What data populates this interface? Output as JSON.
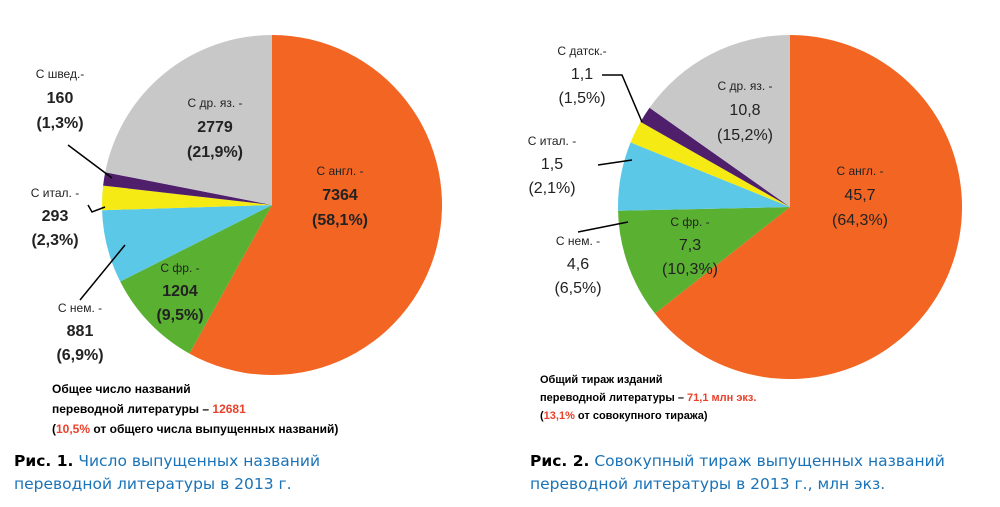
{
  "chart_data": [
    {
      "type": "pie",
      "categories": [
        "С англ. -",
        "С фр. -",
        "С нем. -",
        "С итал. -",
        "С швед.-",
        "С др. яз. -"
      ],
      "values": [
        7364,
        1204,
        881,
        293,
        160,
        2779
      ],
      "percent_labels": [
        "(58,1%)",
        "(9,5%)",
        "(6,9%)",
        "(2,3%)",
        "(1,3%)",
        "(21,9%)"
      ],
      "colors": [
        "#f26522",
        "#5ab031",
        "#5bc8e8",
        "#f5ea14",
        "#4f1f6b",
        "#c8c8c8"
      ],
      "note": [
        [
          {
            "text": "Общее число названий",
            "color": "#000000"
          }
        ],
        [
          {
            "text": "переводной литературы – ",
            "color": "#000000"
          },
          {
            "text": "12681",
            "color": "#e8412c"
          }
        ],
        [
          {
            "text": "(",
            "color": "#000000"
          },
          {
            "text": "10,5%",
            "color": "#e8412c"
          },
          {
            "text": " от общего числа выпущенных названий)",
            "color": "#000000"
          }
        ]
      ],
      "caption_label": "Рис. 1.",
      "caption": "Число выпущенных названий переводной литературы в 2013 г."
    },
    {
      "type": "pie",
      "categories": [
        "С англ. -",
        "С фр. -",
        "С нем. -",
        "С итал. -",
        "С датск.-",
        "С др. яз. -"
      ],
      "values": [
        45.7,
        7.3,
        4.6,
        1.5,
        1.1,
        10.8
      ],
      "value_labels": [
        "45,7",
        "7,3",
        "4,6",
        "1,5",
        "1,1",
        "10,8"
      ],
      "percent_labels": [
        "(64,3%)",
        "(10,3%)",
        "(6,5%)",
        "(2,1%)",
        "(1,5%)",
        "(15,2%)"
      ],
      "colors": [
        "#f26522",
        "#5ab031",
        "#5bc8e8",
        "#f5ea14",
        "#4f1f6b",
        "#c8c8c8"
      ],
      "note": [
        [
          {
            "text": "Общий тираж изданий",
            "color": "#000000"
          }
        ],
        [
          {
            "text": "переводной литературы – ",
            "color": "#000000"
          },
          {
            "text": "71,1 млн экз.",
            "color": "#e8412c"
          }
        ],
        [
          {
            "text": "(",
            "color": "#000000"
          },
          {
            "text": "13,1%",
            "color": "#e8412c"
          },
          {
            "text": " от совокупного тиража)",
            "color": "#000000"
          }
        ]
      ],
      "caption_label": "Рис. 2.",
      "caption": "Совокупный тираж выпущенных названий переводной литературы в 2013 г., млн экз."
    }
  ]
}
